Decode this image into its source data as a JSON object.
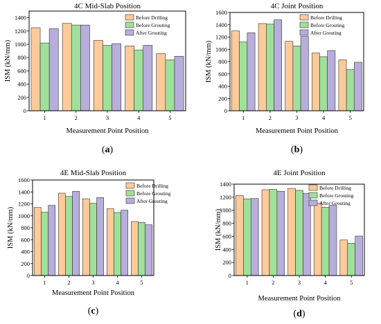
{
  "chart_data": [
    {
      "type": "bar",
      "panel_label": "(a)",
      "title": "4C Mid-Slab Position",
      "xlabel": "Measurement Point Position",
      "ylabel": "ISM (kN/mm)",
      "categories": [
        "1",
        "2",
        "3",
        "4",
        "5"
      ],
      "ylim": [
        0,
        1500
      ],
      "yticks": [
        0,
        200,
        400,
        600,
        800,
        1000,
        1200,
        1400
      ],
      "legend": "top-right",
      "series": [
        {
          "name": "Before Drilling",
          "color": "#FDCA9A",
          "values": [
            1250,
            1315,
            1060,
            975,
            860
          ]
        },
        {
          "name": "Before Grouting",
          "color": "#9FE09A",
          "values": [
            1020,
            1290,
            985,
            915,
            765
          ]
        },
        {
          "name": "After Grouting",
          "color": "#B7AEDC",
          "values": [
            1235,
            1290,
            1010,
            985,
            820
          ]
        }
      ]
    },
    {
      "type": "bar",
      "panel_label": "(b)",
      "title": "4C Joint Position",
      "xlabel": "Measurement Point Position",
      "ylabel": "ISM (kN/mm)",
      "categories": [
        "1",
        "2",
        "3",
        "4",
        "5"
      ],
      "ylim": [
        0,
        1600
      ],
      "yticks": [
        0,
        200,
        400,
        600,
        800,
        1000,
        1200,
        1400,
        1600
      ],
      "legend": "top-right",
      "series": [
        {
          "name": "Before Drilling",
          "color": "#FDCA9A",
          "values": [
            1300,
            1420,
            1130,
            940,
            830
          ]
        },
        {
          "name": "Before Grouting",
          "color": "#9FE09A",
          "values": [
            1120,
            1410,
            1055,
            880,
            670
          ]
        },
        {
          "name": "After Grouting",
          "color": "#B7AEDC",
          "values": [
            1270,
            1480,
            1210,
            980,
            790
          ]
        }
      ]
    },
    {
      "type": "bar",
      "panel_label": "(c)",
      "title": "4E Mid-Slab Position",
      "xlabel": "Measurement Point Position",
      "ylabel": "ISM (kN/mm)",
      "categories": [
        "1",
        "2",
        "3",
        "4",
        "5"
      ],
      "ylim": [
        0,
        1600
      ],
      "yticks": [
        0,
        200,
        400,
        600,
        800,
        1000,
        1200,
        1400,
        1600
      ],
      "legend": "top-right",
      "series": [
        {
          "name": "Before Drilling",
          "color": "#FDCA9A",
          "values": [
            1140,
            1380,
            1285,
            1120,
            905
          ]
        },
        {
          "name": "Before Grouting",
          "color": "#9FE09A",
          "values": [
            1060,
            1325,
            1210,
            1055,
            890
          ]
        },
        {
          "name": "After Grouting",
          "color": "#B7AEDC",
          "values": [
            1175,
            1410,
            1305,
            1095,
            850
          ]
        }
      ]
    },
    {
      "type": "bar",
      "panel_label": "(d)",
      "title": "4E Joint Position",
      "xlabel": "Measurement Point Position",
      "ylabel": "ISM (kN/mm)",
      "categories": [
        "1",
        "2",
        "3",
        "4",
        "5"
      ],
      "ylim": [
        0,
        1400
      ],
      "yticks": [
        0,
        200,
        400,
        600,
        800,
        1000,
        1200,
        1400
      ],
      "legend": "top-right",
      "series": [
        {
          "name": "Before Drilling",
          "color": "#FDCA9A",
          "values": [
            1225,
            1315,
            1335,
            1110,
            545
          ]
        },
        {
          "name": "Before Grouting",
          "color": "#9FE09A",
          "values": [
            1175,
            1320,
            1305,
            1045,
            495
          ]
        },
        {
          "name": "After Grouting",
          "color": "#B7AEDC",
          "values": [
            1180,
            1290,
            1260,
            1075,
            605
          ]
        }
      ]
    }
  ]
}
